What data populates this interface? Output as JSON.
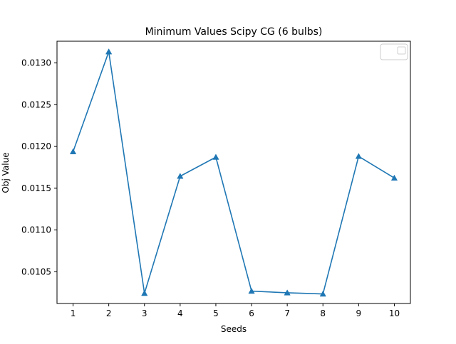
{
  "chart_data": {
    "type": "line",
    "title": "Minimum Values Scipy CG (6 bulbs)",
    "xlabel": "Seeds",
    "ylabel": "Obj Value",
    "x": [
      1,
      2,
      3,
      4,
      5,
      6,
      7,
      8,
      9,
      10
    ],
    "xticks": [
      "1",
      "2",
      "3",
      "4",
      "5",
      "6",
      "7",
      "8",
      "9",
      "10"
    ],
    "yticks": [
      "0.0105",
      "0.0110",
      "0.0115",
      "0.0120",
      "0.0125",
      "0.0130"
    ],
    "ytick_values": [
      0.0105,
      0.011,
      0.0115,
      0.012,
      0.0125,
      0.013
    ],
    "xlim": [
      0.55,
      10.45
    ],
    "ylim": [
      0.01012,
      0.01326
    ],
    "grid": false,
    "legend": "top-right",
    "series": [
      {
        "marker": "triangle-up",
        "color": "#1f77b4",
        "values": [
          0.011938,
          0.013134,
          0.010242,
          0.011644,
          0.011872,
          0.010268,
          0.010248,
          0.010234,
          0.011882,
          0.011622
        ]
      }
    ]
  }
}
